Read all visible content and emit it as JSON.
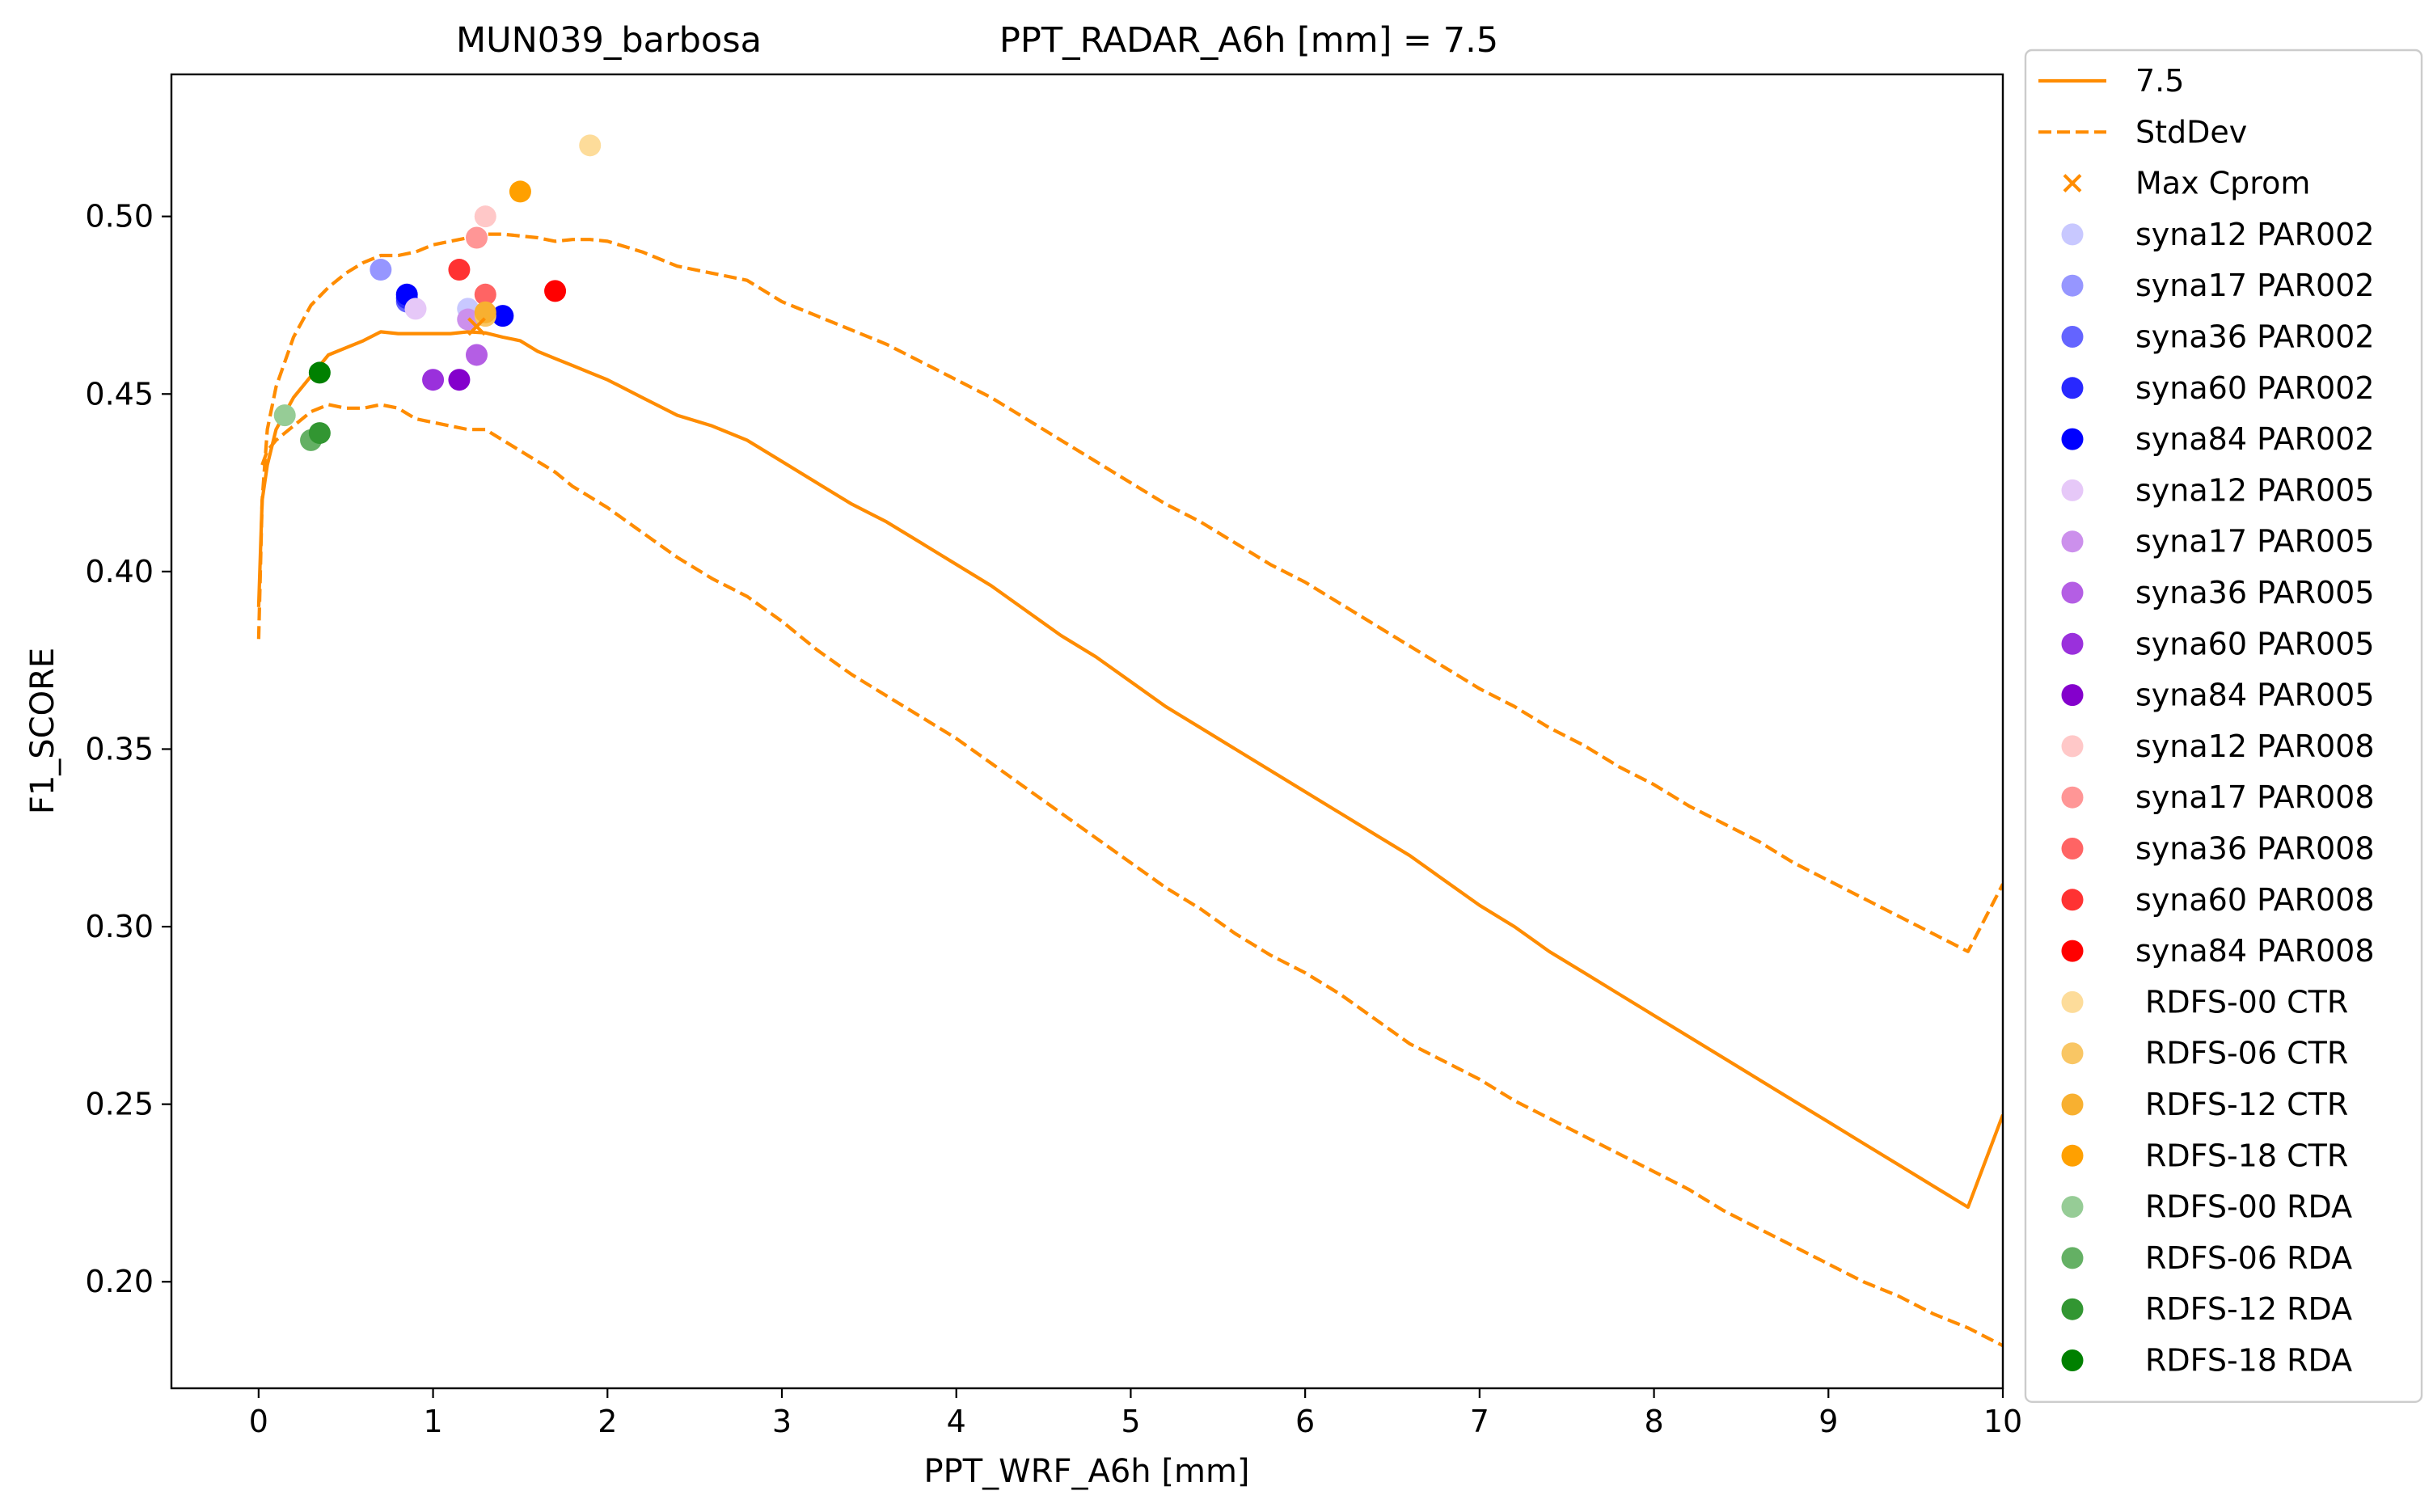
{
  "chart_data": {
    "type": "line",
    "title_left": "MUN039_barbosa",
    "title_right": "PPT_RADAR_A6h [mm] = 7.5",
    "xlabel": "PPT_WRF_A6h [mm]",
    "ylabel": "F1_SCORE",
    "xlim": [
      -0.5,
      10
    ],
    "ylim": [
      0.17,
      0.54
    ],
    "xticks": [
      0,
      1,
      2,
      3,
      4,
      5,
      6,
      7,
      8,
      9,
      10
    ],
    "yticks": [
      0.2,
      0.25,
      0.3,
      0.35,
      0.4,
      0.45,
      0.5
    ],
    "ytick_labels": [
      "0.20",
      "0.25",
      "0.30",
      "0.35",
      "0.40",
      "0.45",
      "0.50"
    ],
    "grid": false,
    "legend_position": "outside-right",
    "line_color": "#ff8c00",
    "lines": [
      {
        "name": "7.5",
        "style": "solid",
        "points": [
          [
            0.0,
            0.39
          ],
          [
            0.02,
            0.42
          ],
          [
            0.05,
            0.43
          ],
          [
            0.1,
            0.44
          ],
          [
            0.2,
            0.449
          ],
          [
            0.3,
            0.455
          ],
          [
            0.4,
            0.461
          ],
          [
            0.5,
            0.463
          ],
          [
            0.6,
            0.465
          ],
          [
            0.7,
            0.4675
          ],
          [
            0.8,
            0.467
          ],
          [
            0.9,
            0.467
          ],
          [
            1.0,
            0.467
          ],
          [
            1.1,
            0.467
          ],
          [
            1.2,
            0.4675
          ],
          [
            1.3,
            0.4672
          ],
          [
            1.4,
            0.466
          ],
          [
            1.5,
            0.465
          ],
          [
            1.6,
            0.462
          ],
          [
            1.7,
            0.46
          ],
          [
            1.8,
            0.458
          ],
          [
            1.9,
            0.456
          ],
          [
            2.0,
            0.454
          ],
          [
            2.2,
            0.449
          ],
          [
            2.4,
            0.444
          ],
          [
            2.6,
            0.441
          ],
          [
            2.8,
            0.437
          ],
          [
            3.0,
            0.431
          ],
          [
            3.2,
            0.425
          ],
          [
            3.4,
            0.419
          ],
          [
            3.6,
            0.414
          ],
          [
            3.8,
            0.408
          ],
          [
            4.0,
            0.402
          ],
          [
            4.2,
            0.396
          ],
          [
            4.4,
            0.389
          ],
          [
            4.6,
            0.382
          ],
          [
            4.8,
            0.376
          ],
          [
            5.0,
            0.369
          ],
          [
            5.2,
            0.362
          ],
          [
            5.4,
            0.356
          ],
          [
            5.6,
            0.35
          ],
          [
            5.8,
            0.344
          ],
          [
            6.0,
            0.338
          ],
          [
            6.2,
            0.332
          ],
          [
            6.4,
            0.326
          ],
          [
            6.6,
            0.32
          ],
          [
            6.8,
            0.313
          ],
          [
            7.0,
            0.306
          ],
          [
            7.2,
            0.3
          ],
          [
            7.4,
            0.293
          ],
          [
            7.6,
            0.287
          ],
          [
            7.8,
            0.281
          ],
          [
            8.0,
            0.275
          ],
          [
            8.2,
            0.269
          ],
          [
            8.4,
            0.263
          ],
          [
            8.6,
            0.257
          ],
          [
            8.8,
            0.251
          ],
          [
            9.0,
            0.245
          ],
          [
            9.2,
            0.239
          ],
          [
            9.4,
            0.233
          ],
          [
            9.6,
            0.227
          ],
          [
            9.8,
            0.221
          ],
          [
            10.0,
            0.247
          ]
        ]
      },
      {
        "name": "StdDev",
        "style": "dashed",
        "points": [
          [
            0.0,
            0.381
          ],
          [
            0.02,
            0.42
          ],
          [
            0.05,
            0.44
          ],
          [
            0.1,
            0.452
          ],
          [
            0.2,
            0.466
          ],
          [
            0.3,
            0.475
          ],
          [
            0.4,
            0.48
          ],
          [
            0.5,
            0.484
          ],
          [
            0.6,
            0.487
          ],
          [
            0.7,
            0.489
          ],
          [
            0.8,
            0.489
          ],
          [
            0.9,
            0.49
          ],
          [
            1.0,
            0.492
          ],
          [
            1.1,
            0.493
          ],
          [
            1.2,
            0.494
          ],
          [
            1.3,
            0.495
          ],
          [
            1.4,
            0.495
          ],
          [
            1.5,
            0.4945
          ],
          [
            1.6,
            0.494
          ],
          [
            1.7,
            0.493
          ],
          [
            1.8,
            0.4935
          ],
          [
            1.9,
            0.4935
          ],
          [
            2.0,
            0.493
          ],
          [
            2.2,
            0.49
          ],
          [
            2.4,
            0.486
          ],
          [
            2.6,
            0.484
          ],
          [
            2.8,
            0.482
          ],
          [
            3.0,
            0.476
          ],
          [
            3.2,
            0.472
          ],
          [
            3.4,
            0.468
          ],
          [
            3.6,
            0.464
          ],
          [
            3.8,
            0.459
          ],
          [
            4.0,
            0.454
          ],
          [
            4.2,
            0.449
          ],
          [
            4.4,
            0.443
          ],
          [
            4.6,
            0.437
          ],
          [
            4.8,
            0.431
          ],
          [
            5.0,
            0.425
          ],
          [
            5.2,
            0.419
          ],
          [
            5.4,
            0.414
          ],
          [
            5.6,
            0.408
          ],
          [
            5.8,
            0.402
          ],
          [
            6.0,
            0.397
          ],
          [
            6.2,
            0.391
          ],
          [
            6.4,
            0.385
          ],
          [
            6.6,
            0.379
          ],
          [
            6.8,
            0.373
          ],
          [
            7.0,
            0.367
          ],
          [
            7.2,
            0.362
          ],
          [
            7.4,
            0.356
          ],
          [
            7.6,
            0.351
          ],
          [
            7.8,
            0.345
          ],
          [
            8.0,
            0.34
          ],
          [
            8.2,
            0.334
          ],
          [
            8.4,
            0.329
          ],
          [
            8.6,
            0.324
          ],
          [
            8.8,
            0.318
          ],
          [
            9.0,
            0.313
          ],
          [
            9.2,
            0.308
          ],
          [
            9.4,
            0.303
          ],
          [
            9.6,
            0.298
          ],
          [
            9.8,
            0.293
          ],
          [
            10.0,
            0.312
          ]
        ]
      },
      {
        "name": "StdDev-lower",
        "style": "dashed",
        "points": [
          [
            0.02,
            0.43
          ],
          [
            0.05,
            0.434
          ],
          [
            0.1,
            0.437
          ],
          [
            0.2,
            0.441
          ],
          [
            0.3,
            0.445
          ],
          [
            0.4,
            0.447
          ],
          [
            0.5,
            0.446
          ],
          [
            0.6,
            0.446
          ],
          [
            0.7,
            0.447
          ],
          [
            0.8,
            0.446
          ],
          [
            0.9,
            0.443
          ],
          [
            1.0,
            0.442
          ],
          [
            1.1,
            0.441
          ],
          [
            1.2,
            0.44
          ],
          [
            1.3,
            0.44
          ],
          [
            1.4,
            0.437
          ],
          [
            1.5,
            0.434
          ],
          [
            1.6,
            0.431
          ],
          [
            1.7,
            0.428
          ],
          [
            1.8,
            0.424
          ],
          [
            1.9,
            0.421
          ],
          [
            2.0,
            0.418
          ],
          [
            2.2,
            0.411
          ],
          [
            2.4,
            0.404
          ],
          [
            2.6,
            0.398
          ],
          [
            2.8,
            0.393
          ],
          [
            3.0,
            0.386
          ],
          [
            3.2,
            0.378
          ],
          [
            3.4,
            0.371
          ],
          [
            3.6,
            0.365
          ],
          [
            3.8,
            0.359
          ],
          [
            4.0,
            0.353
          ],
          [
            4.2,
            0.346
          ],
          [
            4.4,
            0.339
          ],
          [
            4.6,
            0.332
          ],
          [
            4.8,
            0.325
          ],
          [
            5.0,
            0.318
          ],
          [
            5.2,
            0.311
          ],
          [
            5.4,
            0.305
          ],
          [
            5.6,
            0.298
          ],
          [
            5.8,
            0.292
          ],
          [
            6.0,
            0.287
          ],
          [
            6.2,
            0.281
          ],
          [
            6.4,
            0.274
          ],
          [
            6.6,
            0.267
          ],
          [
            6.8,
            0.262
          ],
          [
            7.0,
            0.257
          ],
          [
            7.2,
            0.251
          ],
          [
            7.4,
            0.246
          ],
          [
            7.6,
            0.241
          ],
          [
            7.8,
            0.236
          ],
          [
            8.0,
            0.231
          ],
          [
            8.2,
            0.226
          ],
          [
            8.4,
            0.22
          ],
          [
            8.6,
            0.215
          ],
          [
            8.8,
            0.21
          ],
          [
            9.0,
            0.205
          ],
          [
            9.2,
            0.2
          ],
          [
            9.4,
            0.196
          ],
          [
            9.6,
            0.191
          ],
          [
            9.8,
            0.187
          ],
          [
            10.0,
            0.182
          ]
        ]
      }
    ],
    "max_cprom": {
      "name": "Max Cprom",
      "x": 1.25,
      "y": 0.469,
      "color": "#ff8c00"
    },
    "scatter": [
      {
        "name": "syna12 PAR002",
        "color": "#c8c8ff",
        "points": [
          [
            1.2,
            0.474
          ]
        ]
      },
      {
        "name": "syna17 PAR002",
        "color": "#9696ff",
        "points": [
          [
            0.7,
            0.485
          ]
        ]
      },
      {
        "name": "syna36 PAR002",
        "color": "#6464ff",
        "points": [
          [
            0.85,
            0.476
          ]
        ]
      },
      {
        "name": "syna60 PAR002",
        "color": "#2828ff",
        "points": [
          [
            0.85,
            0.477
          ]
        ]
      },
      {
        "name": "syna84 PAR002",
        "color": "#0000ff",
        "points": [
          [
            0.85,
            0.478
          ],
          [
            1.4,
            0.472
          ]
        ]
      },
      {
        "name": "syna12 PAR005",
        "color": "#e6c8f8",
        "points": [
          [
            0.9,
            0.474
          ]
        ]
      },
      {
        "name": "syna17 PAR005",
        "color": "#cc90ec",
        "points": [
          [
            1.2,
            0.471
          ]
        ]
      },
      {
        "name": "syna36 PAR005",
        "color": "#b45ee4",
        "points": [
          [
            1.25,
            0.461
          ]
        ]
      },
      {
        "name": "syna60 PAR005",
        "color": "#9a30dc",
        "points": [
          [
            1.0,
            0.454
          ]
        ]
      },
      {
        "name": "syna84 PAR005",
        "color": "#8400cc",
        "points": [
          [
            1.15,
            0.454
          ]
        ]
      },
      {
        "name": "syna12 PAR008",
        "color": "#ffc8c8",
        "points": [
          [
            1.3,
            0.5
          ]
        ]
      },
      {
        "name": "syna17 PAR008",
        "color": "#ff9696",
        "points": [
          [
            1.25,
            0.494
          ]
        ]
      },
      {
        "name": "syna36 PAR008",
        "color": "#ff6464",
        "points": [
          [
            1.3,
            0.478
          ]
        ]
      },
      {
        "name": "syna60 PAR008",
        "color": "#ff3232",
        "points": [
          [
            1.15,
            0.485
          ]
        ]
      },
      {
        "name": "syna84 PAR008",
        "color": "#ff0000",
        "points": [
          [
            1.7,
            0.479
          ]
        ]
      },
      {
        "name": "RDFS-00 CTR",
        "color": "#fddc9a",
        "points": [
          [
            1.9,
            0.52
          ]
        ]
      },
      {
        "name": "RDFS-06 CTR",
        "color": "#f9c664",
        "points": [
          [
            1.3,
            0.472
          ]
        ]
      },
      {
        "name": "RDFS-12 CTR",
        "color": "#f8b030",
        "points": [
          [
            1.3,
            0.473
          ]
        ]
      },
      {
        "name": "RDFS-18 CTR",
        "color": "#ffa000",
        "points": [
          [
            1.5,
            0.507
          ]
        ]
      },
      {
        "name": "RDFS-00 RDA",
        "color": "#96cc96",
        "points": [
          [
            0.15,
            0.444
          ]
        ]
      },
      {
        "name": "RDFS-06 RDA",
        "color": "#64b064",
        "points": [
          [
            0.3,
            0.437
          ]
        ]
      },
      {
        "name": "RDFS-12 RDA",
        "color": "#329632",
        "points": [
          [
            0.35,
            0.439
          ]
        ]
      },
      {
        "name": "RDFS-18 RDA",
        "color": "#008000",
        "points": [
          [
            0.35,
            0.456
          ]
        ]
      }
    ]
  }
}
